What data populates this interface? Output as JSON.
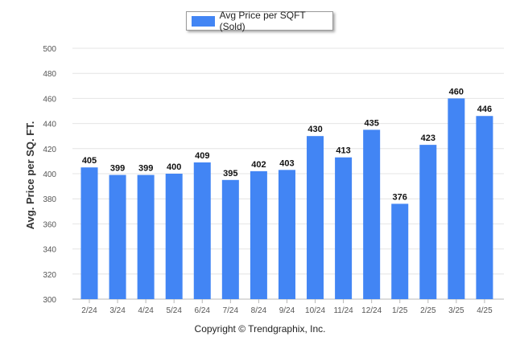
{
  "colors": {
    "bar": "#4285f4",
    "grid": "#e4e4e4",
    "axis": "#b8b8b8"
  },
  "legend": {
    "label": "Avg Price per SQFT (Sold)"
  },
  "footer": {
    "copyright": "Copyright © Trendgraphix, Inc."
  },
  "chart_data": {
    "type": "bar",
    "title": "",
    "xlabel": "",
    "ylabel": "Avg. Price per SQ. FT.",
    "ylim": [
      300,
      500
    ],
    "yticks": [
      300,
      320,
      340,
      360,
      380,
      400,
      420,
      440,
      460,
      480,
      500
    ],
    "grid": true,
    "legend_position": "top-center",
    "categories": [
      "2/24",
      "3/24",
      "4/24",
      "5/24",
      "6/24",
      "7/24",
      "8/24",
      "9/24",
      "10/24",
      "11/24",
      "12/24",
      "1/25",
      "2/25",
      "3/25",
      "4/25"
    ],
    "series": [
      {
        "name": "Avg Price per SQFT (Sold)",
        "values": [
          405,
          399,
          399,
          400,
          409,
          395,
          402,
          403,
          430,
          413,
          435,
          376,
          423,
          460,
          446
        ]
      }
    ]
  }
}
